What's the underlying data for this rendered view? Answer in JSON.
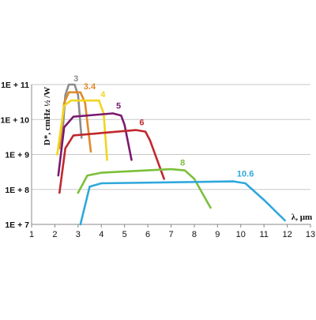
{
  "chart_data": {
    "type": "line",
    "ylabel": "D*, cmHz ½ /W",
    "xlabel": "λ, µm",
    "x_ticks": [
      "1",
      "2",
      "3",
      "4",
      "5",
      "6",
      "7",
      "8",
      "9",
      "10",
      "11",
      "12",
      "13"
    ],
    "y_ticks": [
      "1E + 7",
      "1E + 8",
      "1E + 9",
      "1E + 10",
      "1E + 11"
    ],
    "xlim": [
      1,
      13
    ],
    "ylim": [
      10000000,
      100000000000
    ],
    "y_scale": "log",
    "grid": "horizontal",
    "series": [
      {
        "name": "3",
        "color": "#8c8c8c",
        "points": [
          [
            2.3,
            2000000000
          ],
          [
            2.45,
            50000000000
          ],
          [
            2.6,
            100000000000
          ],
          [
            2.85,
            100000000000
          ],
          [
            3.0,
            50000000000
          ],
          [
            3.15,
            3000000000
          ]
        ]
      },
      {
        "name": "3.4",
        "color": "#e08a2a",
        "points": [
          [
            2.2,
            1500000000
          ],
          [
            2.4,
            30000000000
          ],
          [
            2.6,
            60000000000
          ],
          [
            3.1,
            60000000000
          ],
          [
            3.3,
            30000000000
          ],
          [
            3.55,
            1200000000
          ]
        ]
      },
      {
        "name": "4",
        "color": "#f2d51f",
        "points": [
          [
            2.1,
            1000000000
          ],
          [
            2.4,
            25000000000
          ],
          [
            2.7,
            35000000000
          ],
          [
            3.9,
            35000000000
          ],
          [
            4.1,
            15000000000
          ],
          [
            4.25,
            700000000
          ]
        ]
      },
      {
        "name": "5",
        "color": "#7a1a6e",
        "points": [
          [
            2.15,
            250000000
          ],
          [
            2.4,
            6000000000
          ],
          [
            2.8,
            12000000000
          ],
          [
            4.5,
            15000000000
          ],
          [
            4.85,
            13000000000
          ],
          [
            5.0,
            7000000000
          ],
          [
            5.3,
            700000000
          ]
        ]
      },
      {
        "name": "6",
        "color": "#c0282d",
        "points": [
          [
            2.2,
            80000000
          ],
          [
            2.45,
            1500000000
          ],
          [
            2.8,
            3500000000
          ],
          [
            5.5,
            5000000000
          ],
          [
            5.9,
            4500000000
          ],
          [
            6.1,
            2500000000
          ],
          [
            6.7,
            200000000
          ]
        ]
      },
      {
        "name": "8",
        "color": "#7bbf3a",
        "points": [
          [
            3.0,
            80000000
          ],
          [
            3.4,
            250000000
          ],
          [
            4.0,
            300000000
          ],
          [
            7.0,
            380000000
          ],
          [
            7.6,
            350000000
          ],
          [
            8.0,
            200000000
          ],
          [
            8.7,
            30000000
          ]
        ]
      },
      {
        "name": "10.6",
        "color": "#2fa8dc",
        "points": [
          [
            3.1,
            10000000
          ],
          [
            3.5,
            120000000
          ],
          [
            4.0,
            150000000
          ],
          [
            9.7,
            170000000
          ],
          [
            10.2,
            150000000
          ],
          [
            11.0,
            50000000
          ],
          [
            11.9,
            13000000
          ]
        ]
      }
    ]
  }
}
